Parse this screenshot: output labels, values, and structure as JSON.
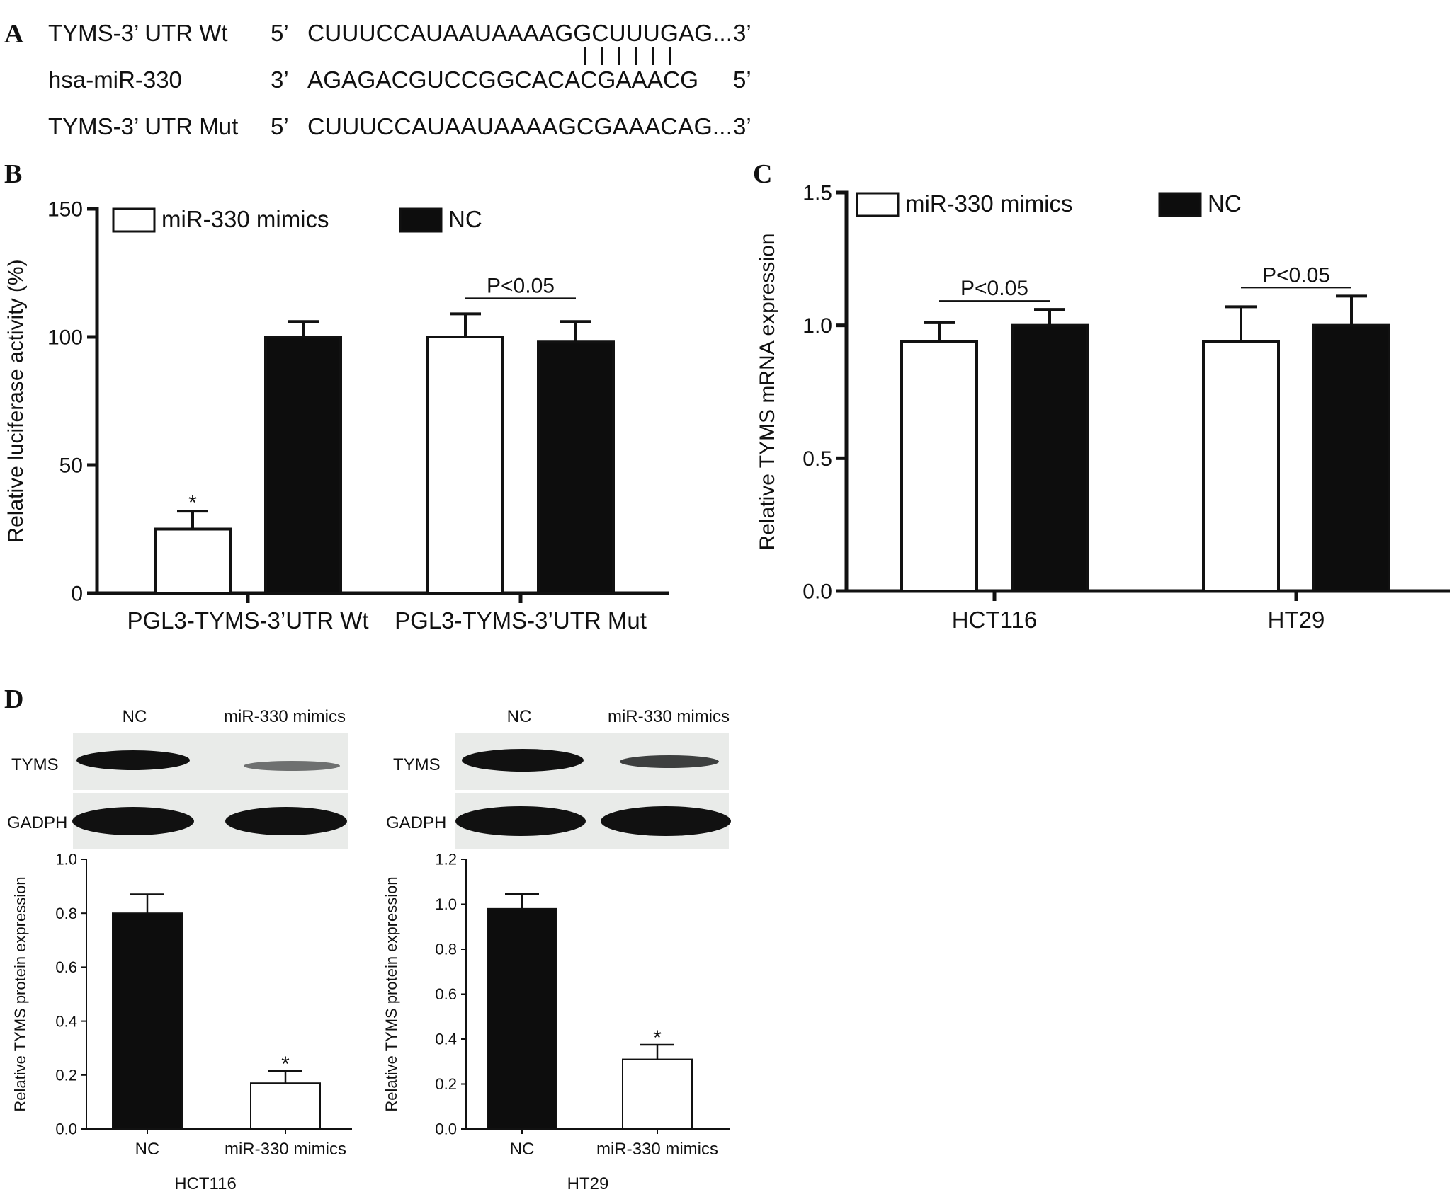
{
  "panelA": {
    "letter": "A",
    "rows": [
      {
        "label": "TYMS-3’ UTR Wt",
        "left_end": "5’",
        "sequence": "CUUUCCAUAAUAAAAGGCUUUGAG...",
        "right_end": "3’"
      },
      {
        "label": "hsa-miR-330",
        "left_end": "3’",
        "sequence": "AGAGACGUCCGGCACACGAAACG",
        "right_end": "5’"
      },
      {
        "label": "TYMS-3’ UTR Mut",
        "left_end": "5’",
        "sequence": "CUUUCCAUAAUAAAAGCGAAACAG...",
        "right_end": "3’"
      }
    ],
    "pairing_marks": "||||||"
  },
  "chart_data": [
    {
      "panel": "B",
      "type": "bar",
      "ylabel": "Relative luciferase activity (%)",
      "xlabel": "",
      "ylim": [
        0,
        150
      ],
      "yticks": [
        0,
        50,
        100,
        150
      ],
      "categories": [
        "PGL3-TYMS-3’UTR Wt",
        "PGL3-TYMS-3’UTR Mut"
      ],
      "series": [
        {
          "name": "miR-330 mimics",
          "fill": "#ffffff",
          "values": [
            25,
            100
          ],
          "errors": [
            7,
            9
          ]
        },
        {
          "name": "NC",
          "fill": "#0d0d0d",
          "values": [
            100,
            98
          ],
          "errors": [
            6,
            8
          ]
        }
      ],
      "annotations": [
        {
          "text": "*",
          "category": 0,
          "series": 0
        },
        {
          "text": "P<0.05",
          "category": 1
        }
      ],
      "legend": "top-left"
    },
    {
      "panel": "C",
      "type": "bar",
      "ylabel": "Relative TYMS mRNA expression",
      "xlabel": "",
      "ylim": [
        0,
        1.5
      ],
      "yticks": [
        "0.0",
        "0.5",
        "1.0",
        "1.5"
      ],
      "categories": [
        "HCT116",
        "HT29"
      ],
      "series": [
        {
          "name": "miR-330 mimics",
          "fill": "#ffffff",
          "values": [
            0.94,
            0.94
          ],
          "errors": [
            0.07,
            0.13
          ]
        },
        {
          "name": "NC",
          "fill": "#0d0d0d",
          "values": [
            1.0,
            1.0
          ],
          "errors": [
            0.06,
            0.11
          ]
        }
      ],
      "annotations": [
        {
          "text": "P<0.05",
          "category": 0
        },
        {
          "text": "P<0.05",
          "category": 1
        }
      ],
      "legend": "top-left"
    },
    {
      "panel": "D",
      "type": "bar",
      "title": "HCT116",
      "ylabel": "Relative TYMS protein expression",
      "ylim": [
        0,
        1.0
      ],
      "yticks": [
        "0.0",
        "0.2",
        "0.4",
        "0.6",
        "0.8",
        "1.0"
      ],
      "categories": [
        "NC",
        "miR-330 mimics"
      ],
      "values": [
        0.8,
        0.17
      ],
      "errors": [
        0.07,
        0.045
      ],
      "fills": [
        "#0d0d0d",
        "#ffffff"
      ],
      "annotations": [
        {
          "text": "*",
          "category": 1
        }
      ]
    },
    {
      "panel": "D",
      "type": "bar",
      "title": "HT29",
      "ylabel": "Relative TYMS protein expression",
      "ylim": [
        0,
        1.2
      ],
      "yticks": [
        "0.0",
        "0.2",
        "0.4",
        "0.6",
        "0.8",
        "1.0",
        "1.2"
      ],
      "categories": [
        "NC",
        "miR-330 mimics"
      ],
      "values": [
        0.98,
        0.31
      ],
      "errors": [
        0.065,
        0.065
      ],
      "fills": [
        "#0d0d0d",
        "#ffffff"
      ],
      "annotations": [
        {
          "text": "*",
          "category": 1
        }
      ]
    }
  ],
  "panelB": {
    "letter": "B",
    "sig_star": "*",
    "p_label": "P<0.05"
  },
  "panelC": {
    "letter": "C",
    "p_label": "P<0.05"
  },
  "panelD": {
    "letter": "D",
    "blots": [
      {
        "lane_labels": [
          "NC",
          "miR-330 mimics"
        ],
        "rows": [
          "TYMS",
          "GADPH"
        ],
        "cell_line": "HCT116"
      },
      {
        "lane_labels": [
          "NC",
          "miR-330 mimics"
        ],
        "rows": [
          "TYMS",
          "GADPH"
        ],
        "cell_line": "HT29"
      }
    ],
    "sig_star": "*"
  }
}
